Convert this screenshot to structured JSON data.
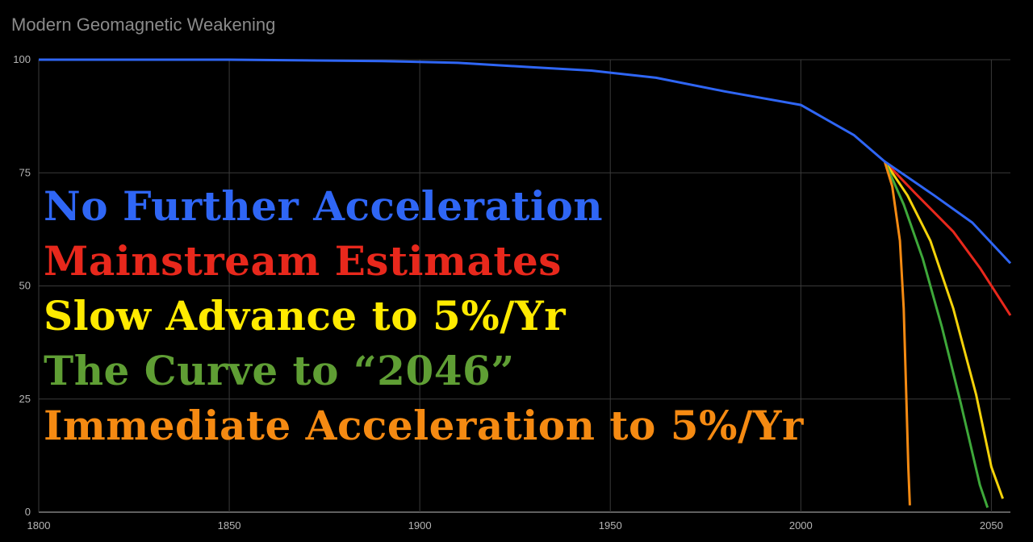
{
  "chart_data": {
    "type": "line",
    "title": "Modern Geomagnetic Weakening",
    "xlabel": "",
    "ylabel": "",
    "xlim": [
      1800,
      2055
    ],
    "ylim": [
      0,
      100
    ],
    "x_ticks": [
      1800,
      1850,
      1900,
      1950,
      2000,
      2050
    ],
    "y_ticks": [
      0,
      25,
      50,
      75,
      100
    ],
    "grid": true,
    "legend_position": "left",
    "series": [
      {
        "name": "No Further Acceleration",
        "color": "#2f66f5",
        "points": [
          [
            1800,
            100
          ],
          [
            1850,
            100
          ],
          [
            1890,
            99.7
          ],
          [
            1910,
            99.3
          ],
          [
            1930,
            98.3
          ],
          [
            1945,
            97.6
          ],
          [
            1962,
            96
          ],
          [
            1980,
            93
          ],
          [
            2000,
            90
          ],
          [
            2014,
            83.3
          ],
          [
            2022,
            77.5
          ],
          [
            2035,
            70
          ],
          [
            2045,
            64
          ],
          [
            2055,
            55
          ]
        ]
      },
      {
        "name": "Mainstream Estimates",
        "color": "#e8281c",
        "points": [
          [
            2022,
            77.5
          ],
          [
            2030,
            70.5
          ],
          [
            2040,
            62
          ],
          [
            2047,
            54
          ],
          [
            2055,
            43.5
          ]
        ]
      },
      {
        "name": "Slow Advance to 5%/Yr",
        "color": "#f4d20a",
        "points": [
          [
            2022,
            77.5
          ],
          [
            2028,
            70
          ],
          [
            2034,
            60
          ],
          [
            2040,
            45
          ],
          [
            2046,
            26
          ],
          [
            2050,
            10
          ],
          [
            2053,
            3
          ]
        ]
      },
      {
        "name": "The Curve to “2046”",
        "color": "#3ea83a",
        "points": [
          [
            2022,
            77.5
          ],
          [
            2027,
            68
          ],
          [
            2032,
            56
          ],
          [
            2037,
            41
          ],
          [
            2042,
            24
          ],
          [
            2047,
            6
          ],
          [
            2049,
            1
          ]
        ]
      },
      {
        "name": "Immediate Acceleration to 5%/Yr",
        "color": "#f58a12",
        "points": [
          [
            2022,
            77.5
          ],
          [
            2024,
            72
          ],
          [
            2026,
            60
          ],
          [
            2027,
            45
          ],
          [
            2027.7,
            25
          ],
          [
            2028.2,
            10
          ],
          [
            2028.6,
            1.5
          ]
        ]
      }
    ]
  },
  "legend_items": [
    {
      "label": "No Further Acceleration",
      "color": "#2f66f5"
    },
    {
      "label": "Mainstream Estimates",
      "color": "#e8281c"
    },
    {
      "label": "Slow Advance to 5%/Yr",
      "color": "#ffea00"
    },
    {
      "label": "The Curve to “2046”",
      "color": "#5f9e34"
    },
    {
      "label": "Immediate Acceleration to 5%/Yr",
      "color": "#f58a12"
    }
  ]
}
